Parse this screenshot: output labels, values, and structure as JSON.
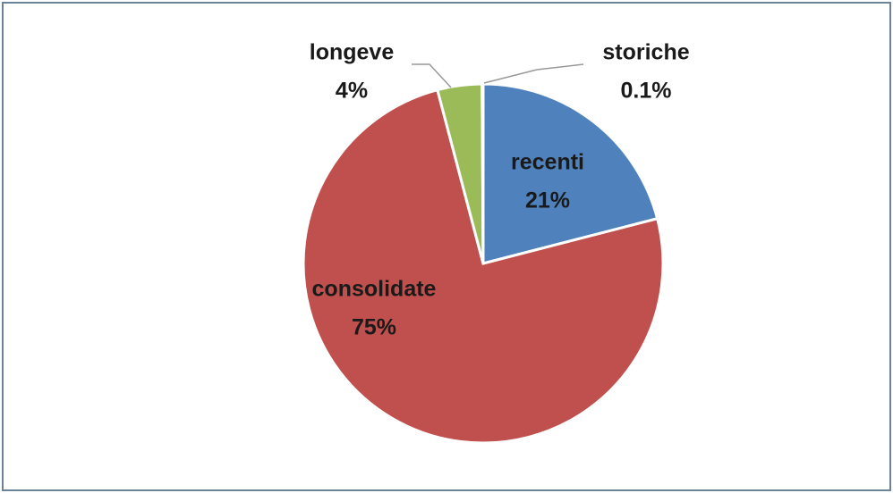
{
  "chart_data": {
    "type": "pie",
    "categories": [
      "recenti",
      "consolidate",
      "longeve",
      "storiche"
    ],
    "values": [
      21,
      75,
      4,
      0.1
    ],
    "value_labels": [
      "21%",
      "75%",
      "4%",
      "0.1%"
    ],
    "colors": [
      "#4f81bd",
      "#c0504d",
      "#9bbb59",
      "#8064a2"
    ]
  }
}
